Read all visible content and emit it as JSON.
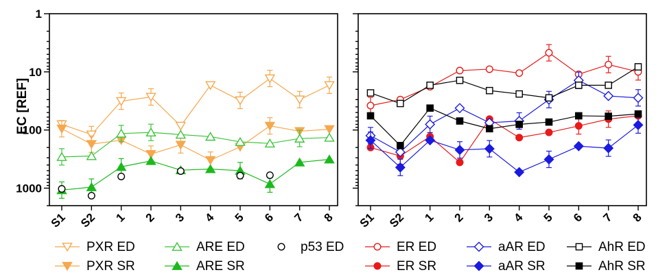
{
  "ylabel": "EC [REF]",
  "colors": {
    "PXR": "#F5A84E",
    "ARE": "#1DB81D",
    "p53": "#000000",
    "ER": "#E81A1A",
    "aAR": "#1A1AE0",
    "AhR": "#000000",
    "ARE_ED": "#3CC43C"
  },
  "chart_data": [
    {
      "type": "line",
      "ylabel": "EC [REF]",
      "y_scale": "log",
      "y_reversed": true,
      "ylim": [
        1,
        2000
      ],
      "y_ticks": [
        1,
        10,
        100,
        1000
      ],
      "y_tick_labels": [
        "1",
        "10",
        "100",
        "1000"
      ],
      "categories": [
        "S1",
        "S2",
        "1",
        "2",
        "3",
        "4",
        "5",
        "6",
        "7",
        "8"
      ],
      "grid": false,
      "legend": "bottom",
      "series": [
        {
          "name": "PXR ED",
          "color_key": "PXR",
          "marker": "triangle-down-open",
          "values": [
            80,
            120,
            32,
            27,
            85,
            17,
            31,
            13,
            30,
            17
          ],
          "err": [
            false,
            true,
            true,
            true,
            false,
            false,
            true,
            true,
            true,
            true
          ]
        },
        {
          "name": "PXR SR",
          "color_key": "PXR",
          "marker": "triangle-down-filled",
          "values": [
            95,
            175,
            150,
            260,
            180,
            330,
            195,
            85,
            105,
            97
          ],
          "err": [
            true,
            true,
            false,
            true,
            true,
            true,
            false,
            true,
            false,
            false
          ]
        },
        {
          "name": "ARE ED",
          "color_key": "ARE_ED",
          "marker": "triangle-up-open",
          "values": [
            290,
            280,
            115,
            110,
            120,
            130,
            160,
            170,
            140,
            135
          ],
          "err": [
            true,
            false,
            true,
            true,
            false,
            false,
            false,
            false,
            true,
            false
          ]
        },
        {
          "name": "ARE  SR",
          "color_key": "ARE",
          "marker": "triangle-up-filled",
          "values": [
            1080,
            960,
            430,
            340,
            490,
            470,
            500,
            850,
            360,
            320
          ],
          "err": [
            true,
            true,
            true,
            false,
            false,
            false,
            true,
            true,
            false,
            false
          ]
        },
        {
          "name": "p53 ED",
          "color_key": "p53",
          "marker": "circle-open-noline",
          "points": [
            [
              "S1",
              1030
            ],
            [
              "S2",
              1350
            ],
            [
              "1",
              630
            ],
            [
              "3",
              510
            ],
            [
              "5",
              610
            ],
            [
              "6",
              600
            ]
          ]
        }
      ]
    },
    {
      "type": "line",
      "y_scale": "log",
      "y_reversed": true,
      "ylim": [
        1,
        2000
      ],
      "y_ticks": [
        1,
        10,
        100,
        1000
      ],
      "categories": [
        "S1",
        "S2",
        "1",
        "2",
        "3",
        "4",
        "5",
        "6",
        "7",
        "8"
      ],
      "grid": false,
      "legend": "bottom",
      "series": [
        {
          "name": "ER ED",
          "color_key": "ER",
          "marker": "circle-open",
          "values": [
            38,
            30,
            18,
            9.5,
            9,
            10.5,
            4.7,
            11,
            7.5,
            10
          ],
          "err": [
            true,
            false,
            false,
            false,
            false,
            false,
            true,
            false,
            true,
            true
          ]
        },
        {
          "name": "ER SR",
          "color_key": "ER",
          "marker": "circle-filled",
          "values": [
            200,
            280,
            130,
            360,
            65,
            135,
            110,
            85,
            65,
            57
          ],
          "err": [
            false,
            true,
            false,
            false,
            false,
            false,
            false,
            true,
            true,
            false
          ]
        },
        {
          "name": "aAR ED",
          "color_key": "aAR",
          "marker": "diamond-open",
          "values": [
            125,
            240,
            80,
            42,
            75,
            70,
            30,
            14,
            26,
            28
          ],
          "err": [
            true,
            false,
            true,
            false,
            false,
            true,
            true,
            true,
            false,
            true
          ]
        },
        {
          "name": "aAR SR",
          "color_key": "aAR",
          "marker": "diamond-filled",
          "values": [
            150,
            440,
            150,
            220,
            210,
            530,
            320,
            190,
            205,
            82
          ],
          "err": [
            true,
            true,
            false,
            true,
            true,
            false,
            true,
            false,
            true,
            true
          ]
        },
        {
          "name": "AhR ED",
          "color_key": "AhR",
          "marker": "square-open",
          "values": [
            23,
            35,
            17,
            14,
            21,
            24,
            28,
            17,
            17,
            8.2
          ],
          "err": [
            false,
            false,
            false,
            false,
            false,
            false,
            false,
            false,
            false,
            false
          ]
        },
        {
          "name": "AhR SR",
          "color_key": "AhR",
          "marker": "square-filled",
          "values": [
            57,
            185,
            42,
            70,
            95,
            80,
            73,
            57,
            58,
            53
          ],
          "err": [
            false,
            false,
            false,
            false,
            false,
            false,
            false,
            false,
            false,
            false
          ]
        }
      ]
    }
  ]
}
